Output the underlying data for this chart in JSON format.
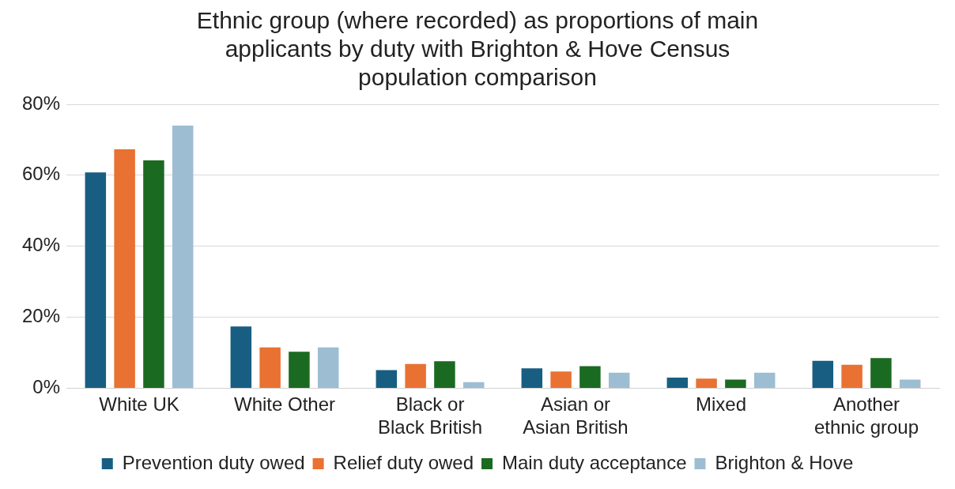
{
  "chart_data": {
    "type": "bar",
    "title": "Ethnic group (where recorded) as proportions of main applicants by duty with Brighton & Hove Census population comparison",
    "categories": [
      "White UK",
      "White Other",
      "Black or Black British",
      "Asian or Asian British",
      "Mixed",
      "Another ethnic group"
    ],
    "series": [
      {
        "name": "Prevention duty owed",
        "color": "#175e82",
        "values": [
          60.8,
          17.4,
          5.1,
          5.6,
          3.0,
          7.7
        ]
      },
      {
        "name": "Relief duty owed",
        "color": "#e97132",
        "values": [
          67.3,
          11.5,
          6.8,
          4.7,
          2.7,
          6.6
        ]
      },
      {
        "name": "Main duty acceptance",
        "color": "#1b6a21",
        "values": [
          64.2,
          10.3,
          7.6,
          6.2,
          2.4,
          8.5
        ]
      },
      {
        "name": "Brighton & Hove",
        "color": "#9dbdd3",
        "values": [
          74.0,
          11.5,
          1.7,
          4.4,
          4.4,
          2.4
        ]
      }
    ],
    "ylim": [
      0,
      80
    ],
    "yticks": [
      {
        "value": 0,
        "label": "0%"
      },
      {
        "value": 20,
        "label": "20%"
      },
      {
        "value": 40,
        "label": "40%"
      },
      {
        "value": 60,
        "label": "60%"
      },
      {
        "value": 80,
        "label": "80%"
      }
    ],
    "grid": "y",
    "legend": "bottom"
  }
}
